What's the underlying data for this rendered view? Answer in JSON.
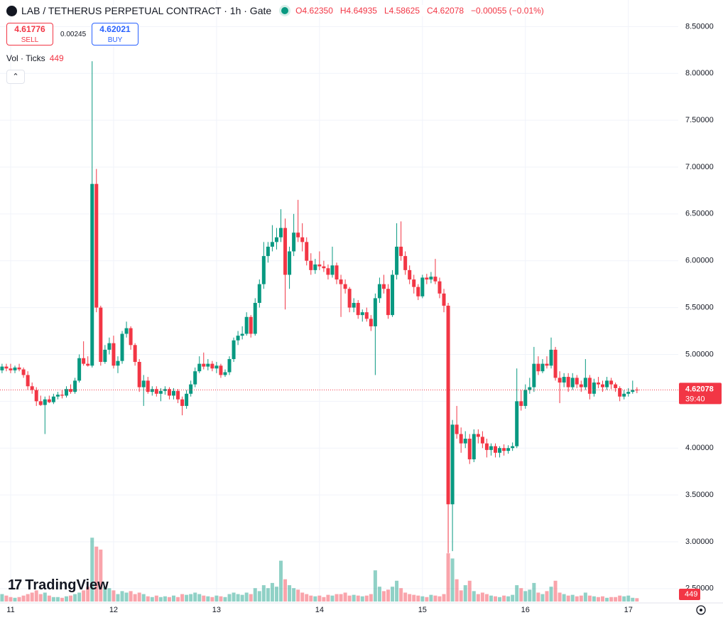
{
  "chart_data": {
    "type": "candlestick",
    "title": "LAB / TETHERUS PERPETUAL CONTRACT · 1h · Gate",
    "legend_open": "O4.62350",
    "legend_high": "H4.64935",
    "legend_low": "L4.58625",
    "legend_close": "C4.62078",
    "legend_change": "−0.00055 (−0.01%)",
    "sell_price": "4.61776",
    "sell_label": "SELL",
    "spread": "0.00245",
    "buy_price": "4.62021",
    "buy_label": "BUY",
    "volume_legend": {
      "title": "Vol · Ticks",
      "value": "449"
    },
    "last_price_label": "4.62078",
    "countdown": "39:40",
    "brand": "TradingView",
    "up_color": "#089981",
    "down_color": "#f23645",
    "ylim": [
      2.4,
      8.7
    ],
    "yticks": [
      {
        "value": 8.5,
        "label": "8.50000"
      },
      {
        "value": 8,
        "label": "8.00000"
      },
      {
        "value": 7.5,
        "label": "7.50000"
      },
      {
        "value": 7,
        "label": "7.00000"
      },
      {
        "value": 6.5,
        "label": "6.50000"
      },
      {
        "value": 6,
        "label": "6.00000"
      },
      {
        "value": 5.5,
        "label": "5.50000"
      },
      {
        "value": 5,
        "label": "5.00000"
      },
      {
        "value": 4.5,
        "label": "4.50000"
      },
      {
        "value": 4,
        "label": "4.00000"
      },
      {
        "value": 3.5,
        "label": "3.50000"
      },
      {
        "value": 3,
        "label": "3.00000"
      },
      {
        "value": 2.5,
        "label": "2.50000"
      }
    ],
    "grid": true,
    "volume_ylim": [
      0,
      80000
    ],
    "categories": [
      null,
      null,
      "11",
      null,
      null,
      null,
      null,
      null,
      null,
      null,
      null,
      null,
      null,
      null,
      null,
      null,
      null,
      null,
      null,
      null,
      null,
      null,
      null,
      null,
      null,
      null,
      "12",
      null,
      null,
      null,
      null,
      null,
      null,
      null,
      null,
      null,
      null,
      null,
      null,
      null,
      null,
      null,
      null,
      null,
      null,
      null,
      null,
      null,
      null,
      null,
      "13",
      null,
      null,
      null,
      null,
      null,
      null,
      null,
      null,
      null,
      null,
      null,
      null,
      null,
      null,
      null,
      null,
      null,
      null,
      null,
      null,
      null,
      null,
      null,
      "14",
      null,
      null,
      null,
      null,
      null,
      null,
      null,
      null,
      null,
      null,
      null,
      null,
      null,
      null,
      null,
      null,
      null,
      null,
      null,
      null,
      null,
      null,
      null,
      "15",
      null,
      null,
      null,
      null,
      null,
      null,
      null,
      null,
      null,
      null,
      null,
      null,
      null,
      null,
      null,
      null,
      null,
      null,
      null,
      null,
      null,
      null,
      null,
      "16",
      null,
      null,
      null,
      null,
      null,
      null,
      null,
      null,
      null,
      null,
      null,
      null,
      null,
      null,
      null,
      null,
      null,
      null,
      null,
      null,
      null,
      null,
      null,
      "17",
      null,
      null
    ],
    "values": [
      [
        4.83,
        4.9,
        4.8,
        4.87
      ],
      [
        4.87,
        4.9,
        4.82,
        4.85
      ],
      [
        4.85,
        4.9,
        4.8,
        4.83
      ],
      [
        4.83,
        4.88,
        4.8,
        4.86
      ],
      [
        4.86,
        4.9,
        4.82,
        4.84
      ],
      [
        4.84,
        4.86,
        4.75,
        4.78
      ],
      [
        4.78,
        4.82,
        4.62,
        4.66
      ],
      [
        4.66,
        4.7,
        4.58,
        4.62
      ],
      [
        4.62,
        4.65,
        4.45,
        4.5
      ],
      [
        4.5,
        4.56,
        4.45,
        4.46
      ],
      [
        4.46,
        4.55,
        4.15,
        4.52
      ],
      [
        4.52,
        4.56,
        4.48,
        4.49
      ],
      [
        4.49,
        4.58,
        4.47,
        4.55
      ],
      [
        4.55,
        4.6,
        4.52,
        4.57
      ],
      [
        4.57,
        4.62,
        4.53,
        4.56
      ],
      [
        4.56,
        4.66,
        4.54,
        4.63
      ],
      [
        4.63,
        4.68,
        4.58,
        4.6
      ],
      [
        4.6,
        4.75,
        4.58,
        4.72
      ],
      [
        4.72,
        5.0,
        4.7,
        4.96
      ],
      [
        4.96,
        5.14,
        4.88,
        4.9
      ],
      [
        4.9,
        4.98,
        4.87,
        4.88
      ],
      [
        4.88,
        8.13,
        4.86,
        6.82
      ],
      [
        6.82,
        6.98,
        5.45,
        5.5
      ],
      [
        5.5,
        5.52,
        4.88,
        4.92
      ],
      [
        4.92,
        5.1,
        4.9,
        5.05
      ],
      [
        5.05,
        5.18,
        5.0,
        5.12
      ],
      [
        5.12,
        5.2,
        4.85,
        4.88
      ],
      [
        4.88,
        4.98,
        4.8,
        4.93
      ],
      [
        4.93,
        5.25,
        4.9,
        5.22
      ],
      [
        5.22,
        5.35,
        5.18,
        5.28
      ],
      [
        5.28,
        5.3,
        5.05,
        5.1
      ],
      [
        5.1,
        5.12,
        4.88,
        4.92
      ],
      [
        4.92,
        4.95,
        4.6,
        4.65
      ],
      [
        4.65,
        4.78,
        4.45,
        4.72
      ],
      [
        4.72,
        4.76,
        4.58,
        4.6
      ],
      [
        4.6,
        4.66,
        4.56,
        4.63
      ],
      [
        4.63,
        4.66,
        4.55,
        4.58
      ],
      [
        4.58,
        4.64,
        4.5,
        4.61
      ],
      [
        4.61,
        4.66,
        4.57,
        4.63
      ],
      [
        4.63,
        4.65,
        4.52,
        4.56
      ],
      [
        4.56,
        4.64,
        4.52,
        4.61
      ],
      [
        4.61,
        4.63,
        4.48,
        4.52
      ],
      [
        4.52,
        4.55,
        4.35,
        4.45
      ],
      [
        4.45,
        4.62,
        4.42,
        4.58
      ],
      [
        4.58,
        4.72,
        4.55,
        4.68
      ],
      [
        4.68,
        4.86,
        4.65,
        4.82
      ],
      [
        4.82,
        4.98,
        4.8,
        4.9
      ],
      [
        4.9,
        5.02,
        4.84,
        4.87
      ],
      [
        4.87,
        4.95,
        4.83,
        4.9
      ],
      [
        4.9,
        4.93,
        4.82,
        4.85
      ],
      [
        4.85,
        4.92,
        4.8,
        4.88
      ],
      [
        4.88,
        4.9,
        4.75,
        4.78
      ],
      [
        4.78,
        4.84,
        4.76,
        4.81
      ],
      [
        4.81,
        4.98,
        4.78,
        4.95
      ],
      [
        4.95,
        5.18,
        4.92,
        5.15
      ],
      [
        5.15,
        5.25,
        5.1,
        5.2
      ],
      [
        5.2,
        5.3,
        5.16,
        5.22
      ],
      [
        5.22,
        5.45,
        5.2,
        5.4
      ],
      [
        5.4,
        5.42,
        5.18,
        5.22
      ],
      [
        5.22,
        5.6,
        5.2,
        5.55
      ],
      [
        5.55,
        5.8,
        5.5,
        5.75
      ],
      [
        5.75,
        6.2,
        5.7,
        6.05
      ],
      [
        6.05,
        6.2,
        5.98,
        6.15
      ],
      [
        6.15,
        6.38,
        6.1,
        6.2
      ],
      [
        6.2,
        6.35,
        6.12,
        6.25
      ],
      [
        6.25,
        6.55,
        6.2,
        6.35
      ],
      [
        6.35,
        6.45,
        5.48,
        5.85
      ],
      [
        5.85,
        6.15,
        5.7,
        6.1
      ],
      [
        6.1,
        6.5,
        6.05,
        6.3
      ],
      [
        6.3,
        6.65,
        6.2,
        6.25
      ],
      [
        6.25,
        6.4,
        6.1,
        6.2
      ],
      [
        6.2,
        6.25,
        5.95,
        6.0
      ],
      [
        6.0,
        6.08,
        5.85,
        5.9
      ],
      [
        5.9,
        6.02,
        5.86,
        5.96
      ],
      [
        5.96,
        6.1,
        5.9,
        5.94
      ],
      [
        5.94,
        6.0,
        5.88,
        5.92
      ],
      [
        5.92,
        5.96,
        5.8,
        5.85
      ],
      [
        5.85,
        6.15,
        5.82,
        5.95
      ],
      [
        5.95,
        5.98,
        5.75,
        5.8
      ],
      [
        5.8,
        5.85,
        5.4,
        5.75
      ],
      [
        5.75,
        5.8,
        5.65,
        5.7
      ],
      [
        5.7,
        5.72,
        5.45,
        5.5
      ],
      [
        5.5,
        5.6,
        5.45,
        5.55
      ],
      [
        5.55,
        5.58,
        5.38,
        5.42
      ],
      [
        5.42,
        5.48,
        5.35,
        5.45
      ],
      [
        5.45,
        5.5,
        5.35,
        5.38
      ],
      [
        5.38,
        5.42,
        5.25,
        5.3
      ],
      [
        5.3,
        5.65,
        4.78,
        5.6
      ],
      [
        5.6,
        5.82,
        5.55,
        5.75
      ],
      [
        5.75,
        5.85,
        5.65,
        5.7
      ],
      [
        5.7,
        5.75,
        5.38,
        5.42
      ],
      [
        5.42,
        5.9,
        5.4,
        5.85
      ],
      [
        5.85,
        6.4,
        5.8,
        6.15
      ],
      [
        6.15,
        6.42,
        6.0,
        6.05
      ],
      [
        6.05,
        6.1,
        5.85,
        5.9
      ],
      [
        5.9,
        5.95,
        5.75,
        5.8
      ],
      [
        5.8,
        5.85,
        5.65,
        5.72
      ],
      [
        5.72,
        5.75,
        5.58,
        5.62
      ],
      [
        5.62,
        5.85,
        5.6,
        5.82
      ],
      [
        5.82,
        5.86,
        5.75,
        5.8
      ],
      [
        5.8,
        5.88,
        5.76,
        5.83
      ],
      [
        5.83,
        6.02,
        5.75,
        5.78
      ],
      [
        5.78,
        5.82,
        5.6,
        5.65
      ],
      [
        5.65,
        5.7,
        5.45,
        5.52
      ],
      [
        5.52,
        5.55,
        2.88,
        3.4
      ],
      [
        3.4,
        4.3,
        2.9,
        4.25
      ],
      [
        4.25,
        4.45,
        4.1,
        4.15
      ],
      [
        4.15,
        4.22,
        3.95,
        4.05
      ],
      [
        4.05,
        4.18,
        4.0,
        4.1
      ],
      [
        4.1,
        4.15,
        3.83,
        3.88
      ],
      [
        3.88,
        4.2,
        3.85,
        4.15
      ],
      [
        4.15,
        4.2,
        4.05,
        4.12
      ],
      [
        4.12,
        4.18,
        4.0,
        4.05
      ],
      [
        4.05,
        4.1,
        3.9,
        3.98
      ],
      [
        3.98,
        4.05,
        3.92,
        4.02
      ],
      [
        4.02,
        4.05,
        3.9,
        3.95
      ],
      [
        3.95,
        4.02,
        3.9,
        4.0
      ],
      [
        4.0,
        4.04,
        3.92,
        3.97
      ],
      [
        3.97,
        4.03,
        3.94,
        4.0
      ],
      [
        4.0,
        4.06,
        3.97,
        4.02
      ],
      [
        4.02,
        4.85,
        4.0,
        4.5
      ],
      [
        4.5,
        4.62,
        4.4,
        4.45
      ],
      [
        4.45,
        4.68,
        4.42,
        4.62
      ],
      [
        4.62,
        4.75,
        4.58,
        4.65
      ],
      [
        4.65,
        5.08,
        4.6,
        4.9
      ],
      [
        4.9,
        4.98,
        4.78,
        4.82
      ],
      [
        4.82,
        4.95,
        4.8,
        4.9
      ],
      [
        4.9,
        4.98,
        4.85,
        4.88
      ],
      [
        4.88,
        5.18,
        4.85,
        5.05
      ],
      [
        5.05,
        5.08,
        4.72,
        4.75
      ],
      [
        4.75,
        4.82,
        4.48,
        4.7
      ],
      [
        4.7,
        4.8,
        4.65,
        4.76
      ],
      [
        4.76,
        4.8,
        4.6,
        4.65
      ],
      [
        4.65,
        4.8,
        4.62,
        4.75
      ],
      [
        4.75,
        4.78,
        4.64,
        4.68
      ],
      [
        4.68,
        4.72,
        4.6,
        4.65
      ],
      [
        4.65,
        4.95,
        4.62,
        4.75
      ],
      [
        4.75,
        4.78,
        4.52,
        4.58
      ],
      [
        4.58,
        4.74,
        4.55,
        4.7
      ],
      [
        4.7,
        4.76,
        4.64,
        4.68
      ],
      [
        4.68,
        4.72,
        4.6,
        4.65
      ],
      [
        4.65,
        4.76,
        4.62,
        4.72
      ],
      [
        4.72,
        4.75,
        4.63,
        4.68
      ],
      [
        4.68,
        4.7,
        4.6,
        4.64
      ],
      [
        4.64,
        4.66,
        4.5,
        4.55
      ],
      [
        4.55,
        4.62,
        4.52,
        4.58
      ],
      [
        4.58,
        4.64,
        4.55,
        4.6
      ],
      [
        4.6,
        4.72,
        4.58,
        4.62
      ],
      [
        4.6235,
        4.64935,
        4.58625,
        4.62078
      ]
    ],
    "volume": [
      1000,
      800,
      600,
      500,
      600,
      800,
      1000,
      1200,
      1500,
      1000,
      1200,
      800,
      600,
      600,
      500,
      700,
      800,
      1000,
      1200,
      1500,
      2000,
      8600,
      7400,
      7000,
      2000,
      1800,
      1500,
      1000,
      1400,
      1200,
      1400,
      1000,
      1200,
      1000,
      700,
      600,
      800,
      600,
      700,
      600,
      800,
      600,
      1000,
      900,
      1000,
      1200,
      1000,
      800,
      700,
      600,
      800,
      700,
      600,
      1000,
      1200,
      1000,
      900,
      1200,
      1000,
      1800,
      1400,
      2200,
      1800,
      2500,
      2000,
      5500,
      3000,
      2200,
      1800,
      1600,
      1200,
      1000,
      800,
      700,
      800,
      600,
      900,
      800,
      1000,
      1000,
      1200,
      800,
      900,
      800,
      700,
      800,
      1000,
      4200,
      2000,
      1400,
      1600,
      2000,
      2800,
      1800,
      1200,
      1000,
      900,
      800,
      700,
      600,
      900,
      800,
      700,
      1000,
      6500,
      5800,
      3000,
      1500,
      2200,
      2800,
      1400,
      1000,
      1200,
      1000,
      800,
      700,
      600,
      800,
      700,
      900,
      2200,
      1800,
      1400,
      1600,
      2500,
      1200,
      1000,
      1400,
      2000,
      2800,
      1200,
      1000,
      800,
      900,
      700,
      800,
      1200,
      800,
      700,
      600,
      700,
      500,
      600,
      600,
      800,
      700,
      800,
      500,
      449
    ]
  }
}
